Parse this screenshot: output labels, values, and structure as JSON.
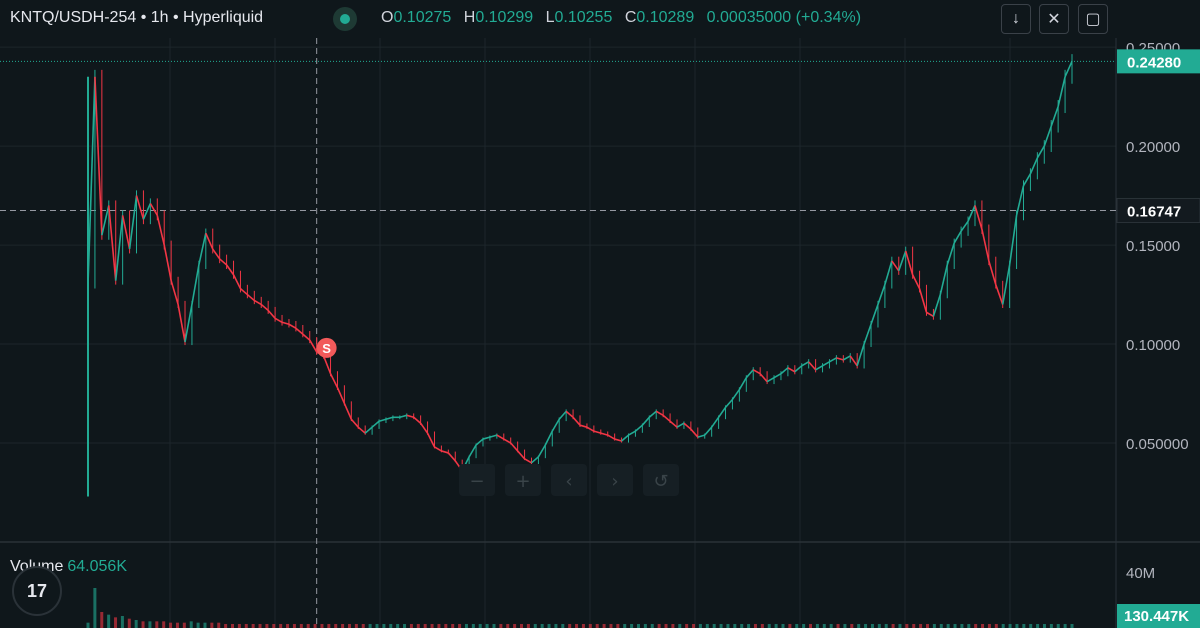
{
  "header": {
    "symbol": "KNTQ/USDH-254 • 1h • Hyperliquid",
    "o_label": "O",
    "o_value": "0.10275",
    "h_label": "H",
    "h_value": "0.10299",
    "l_label": "L",
    "l_value": "0.10255",
    "c_label": "C",
    "c_value": "0.10289",
    "change": "0.00035000 (+0.34%)",
    "icons": [
      "arrow-down-icon",
      "collapse-icon",
      "fullscreen-icon"
    ]
  },
  "volume": {
    "label": "Volume",
    "value": "64.056K"
  },
  "colors": {
    "bg": "#0f171b",
    "up": "#22ab94",
    "down": "#f23645",
    "grid": "#1c262b"
  },
  "chart_data": {
    "type": "line",
    "price_ticks": [
      "0.25000",
      "0.20000",
      "0.15000",
      "0.10000",
      "0.050000"
    ],
    "price_tick_values": [
      0.25,
      0.2,
      0.15,
      0.1,
      0.05
    ],
    "last_price_label": "0.24280",
    "last_price": 0.2428,
    "crosshair_price_label": "0.16747",
    "crosshair_price": 0.16747,
    "volume_tick": "40M",
    "volume_last_label": "130.447K",
    "marker_label": "S",
    "marker_index": 34,
    "crosshair_index": 33,
    "ylim": [
      0.0,
      0.2546
    ],
    "series": [
      {
        "values": [
          0.13,
          0.235,
          0.155,
          0.17,
          0.132,
          0.165,
          0.148,
          0.175,
          0.163,
          0.171,
          0.165,
          0.15,
          0.132,
          0.12,
          0.101,
          0.12,
          0.14,
          0.156,
          0.148,
          0.143,
          0.14,
          0.135,
          0.128,
          0.125,
          0.122,
          0.12,
          0.117,
          0.113,
          0.111,
          0.11,
          0.108,
          0.105,
          0.102,
          0.096,
          0.094,
          0.085,
          0.078,
          0.07,
          0.062,
          0.058,
          0.055,
          0.058,
          0.061,
          0.062,
          0.063,
          0.063,
          0.064,
          0.063,
          0.06,
          0.055,
          0.048,
          0.046,
          0.045,
          0.041,
          0.036,
          0.043,
          0.049,
          0.052,
          0.053,
          0.054,
          0.052,
          0.05,
          0.046,
          0.042,
          0.04,
          0.043,
          0.049,
          0.056,
          0.062,
          0.066,
          0.063,
          0.059,
          0.058,
          0.056,
          0.055,
          0.054,
          0.052,
          0.051,
          0.054,
          0.056,
          0.059,
          0.063,
          0.066,
          0.064,
          0.061,
          0.058,
          0.06,
          0.057,
          0.053,
          0.054,
          0.058,
          0.063,
          0.068,
          0.072,
          0.077,
          0.083,
          0.087,
          0.085,
          0.081,
          0.083,
          0.085,
          0.088,
          0.086,
          0.089,
          0.091,
          0.087,
          0.089,
          0.091,
          0.093,
          0.092,
          0.094,
          0.089,
          0.1,
          0.11,
          0.12,
          0.13,
          0.142,
          0.137,
          0.147,
          0.135,
          0.128,
          0.116,
          0.114,
          0.125,
          0.14,
          0.151,
          0.157,
          0.162,
          0.17,
          0.158,
          0.142,
          0.13,
          0.12,
          0.14,
          0.165,
          0.18,
          0.186,
          0.194,
          0.2,
          0.21,
          0.22,
          0.235,
          0.2428
        ]
      }
    ],
    "volume_values": [
      0.4,
      3.0,
      1.2,
      1.0,
      0.8,
      0.9,
      0.7,
      0.6,
      0.5,
      0.5,
      0.5,
      0.5,
      0.4,
      0.4,
      0.4,
      0.5,
      0.4,
      0.4,
      0.4,
      0.4,
      0.3,
      0.3,
      0.3,
      0.3,
      0.3,
      0.3,
      0.3,
      0.3,
      0.3,
      0.3,
      0.3,
      0.3,
      0.3,
      0.3,
      0.3,
      0.3,
      0.3,
      0.3,
      0.3,
      0.3,
      0.3,
      0.3,
      0.3,
      0.3,
      0.3,
      0.3,
      0.3,
      0.3,
      0.3,
      0.3,
      0.3,
      0.3,
      0.3,
      0.3,
      0.3,
      0.3,
      0.3,
      0.3,
      0.3,
      0.3,
      0.3,
      0.3,
      0.3,
      0.3,
      0.3,
      0.3,
      0.3,
      0.3,
      0.3,
      0.3,
      0.3,
      0.3,
      0.3,
      0.3,
      0.3,
      0.3,
      0.3,
      0.3,
      0.3,
      0.3,
      0.3,
      0.3,
      0.3,
      0.3,
      0.3,
      0.3,
      0.3,
      0.3,
      0.3,
      0.3,
      0.3,
      0.3,
      0.3,
      0.3,
      0.3,
      0.3,
      0.3,
      0.3,
      0.3,
      0.3,
      0.3,
      0.3,
      0.3,
      0.3,
      0.3,
      0.3,
      0.3,
      0.3,
      0.3,
      0.3,
      0.3,
      0.3,
      0.3,
      0.3,
      0.3,
      0.3,
      0.3,
      0.3,
      0.3,
      0.3,
      0.3,
      0.3,
      0.3,
      0.3,
      0.3,
      0.3,
      0.3,
      0.3,
      0.3,
      0.3,
      0.3,
      0.3,
      0.3,
      0.3,
      0.3,
      0.3,
      0.3,
      0.3,
      0.3,
      0.3,
      0.3,
      0.3,
      0.3,
      0.3
    ]
  }
}
